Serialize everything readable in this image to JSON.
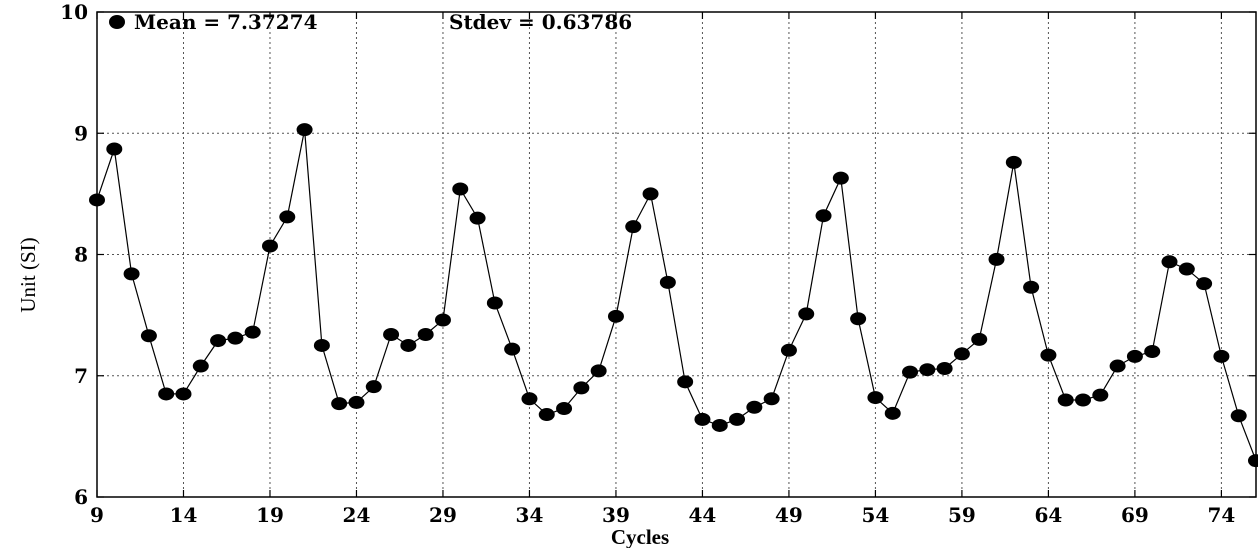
{
  "chart_data": {
    "type": "line",
    "xlabel": "Cycles",
    "ylabel": "Unit (SI)",
    "xlim": [
      9,
      76
    ],
    "ylim": [
      6,
      10
    ],
    "x_ticks": [
      9,
      14,
      19,
      24,
      29,
      34,
      39,
      44,
      49,
      54,
      59,
      64,
      69,
      74
    ],
    "y_ticks": [
      6,
      7,
      8,
      9,
      10
    ],
    "grid": true,
    "annotations": {
      "mean": "Mean = 7.37274",
      "stdev": "Stdev = 0.63786"
    },
    "series": [
      {
        "marker": "filled-circle",
        "color": "#000000",
        "points": [
          [
            9,
            8.45
          ],
          [
            10,
            8.87
          ],
          [
            11,
            7.84
          ],
          [
            12,
            7.33
          ],
          [
            13,
            6.85
          ],
          [
            14,
            6.85
          ],
          [
            15,
            7.08
          ],
          [
            16,
            7.29
          ],
          [
            17,
            7.31
          ],
          [
            18,
            7.36
          ],
          [
            19,
            8.07
          ],
          [
            20,
            8.31
          ],
          [
            21,
            9.03
          ],
          [
            22,
            7.25
          ],
          [
            23,
            6.77
          ],
          [
            24,
            6.78
          ],
          [
            25,
            6.91
          ],
          [
            26,
            7.34
          ],
          [
            27,
            7.25
          ],
          [
            28,
            7.34
          ],
          [
            29,
            7.46
          ],
          [
            30,
            8.54
          ],
          [
            31,
            8.3
          ],
          [
            32,
            7.6
          ],
          [
            33,
            7.22
          ],
          [
            34,
            6.81
          ],
          [
            35,
            6.68
          ],
          [
            36,
            6.73
          ],
          [
            37,
            6.9
          ],
          [
            38,
            7.04
          ],
          [
            39,
            7.49
          ],
          [
            40,
            8.23
          ],
          [
            41,
            8.5
          ],
          [
            42,
            7.77
          ],
          [
            43,
            6.95
          ],
          [
            44,
            6.64
          ],
          [
            45,
            6.59
          ],
          [
            46,
            6.64
          ],
          [
            47,
            6.74
          ],
          [
            48,
            6.81
          ],
          [
            49,
            7.21
          ],
          [
            50,
            7.51
          ],
          [
            51,
            8.32
          ],
          [
            52,
            8.63
          ],
          [
            53,
            7.47
          ],
          [
            54,
            6.82
          ],
          [
            55,
            6.69
          ],
          [
            56,
            7.03
          ],
          [
            57,
            7.05
          ],
          [
            58,
            7.06
          ],
          [
            59,
            7.18
          ],
          [
            60,
            7.3
          ],
          [
            61,
            7.96
          ],
          [
            62,
            8.76
          ],
          [
            63,
            7.73
          ],
          [
            64,
            7.17
          ],
          [
            65,
            6.8
          ],
          [
            66,
            6.8
          ],
          [
            67,
            6.84
          ],
          [
            68,
            7.08
          ],
          [
            69,
            7.16
          ],
          [
            70,
            7.2
          ],
          [
            71,
            7.94
          ],
          [
            72,
            7.88
          ],
          [
            73,
            7.76
          ],
          [
            74,
            7.16
          ],
          [
            75,
            6.67
          ],
          [
            76,
            6.3
          ]
        ]
      }
    ]
  }
}
